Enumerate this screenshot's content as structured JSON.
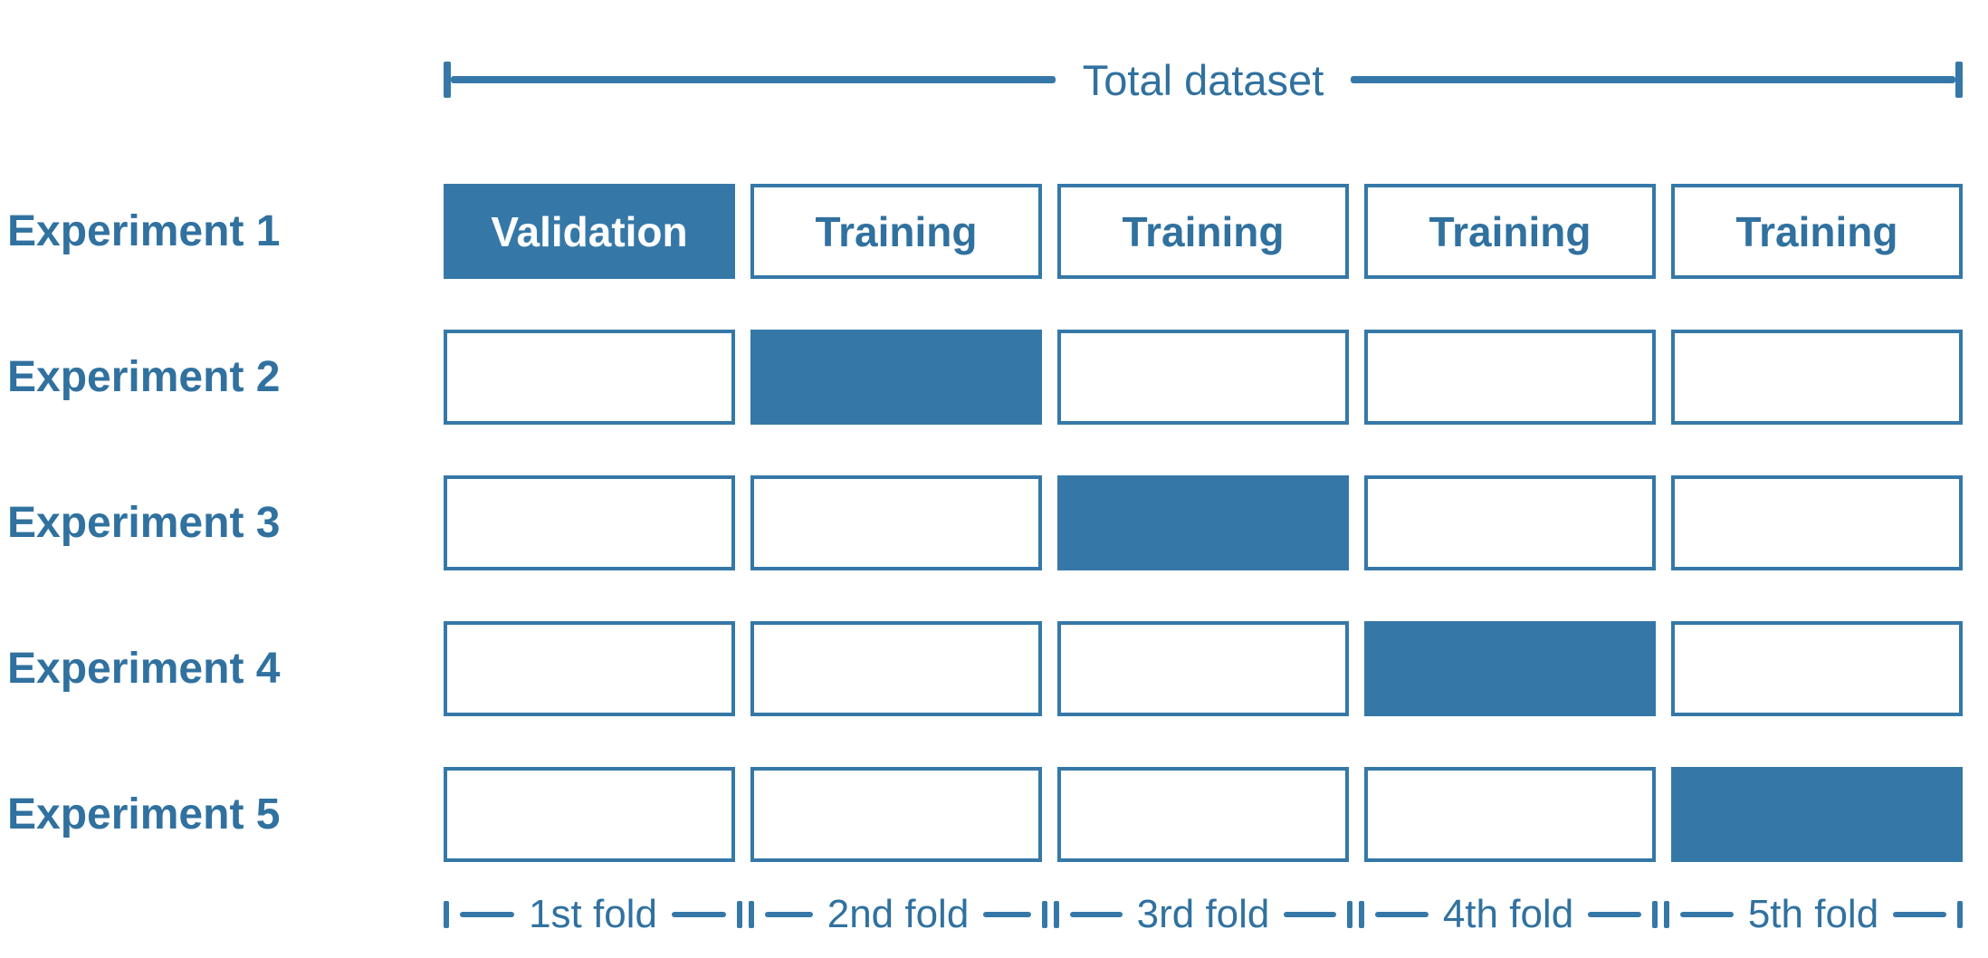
{
  "title": "Total dataset",
  "colors": {
    "blue": "#3578a8",
    "text_blue": "#30719f",
    "background": "#ffffff"
  },
  "experiments": [
    {
      "label": "Experiment 1",
      "cells": [
        {
          "text": "Validation",
          "state": "filled"
        },
        {
          "text": "Training",
          "state": "outlined"
        },
        {
          "text": "Training",
          "state": "outlined"
        },
        {
          "text": "Training",
          "state": "outlined"
        },
        {
          "text": "Training",
          "state": "outlined"
        }
      ]
    },
    {
      "label": "Experiment 2",
      "cells": [
        {
          "text": "",
          "state": "outlined"
        },
        {
          "text": "",
          "state": "filled"
        },
        {
          "text": "",
          "state": "outlined"
        },
        {
          "text": "",
          "state": "outlined"
        },
        {
          "text": "",
          "state": "outlined"
        }
      ]
    },
    {
      "label": "Experiment 3",
      "cells": [
        {
          "text": "",
          "state": "outlined"
        },
        {
          "text": "",
          "state": "outlined"
        },
        {
          "text": "",
          "state": "filled"
        },
        {
          "text": "",
          "state": "outlined"
        },
        {
          "text": "",
          "state": "outlined"
        }
      ]
    },
    {
      "label": "Experiment 4",
      "cells": [
        {
          "text": "",
          "state": "outlined"
        },
        {
          "text": "",
          "state": "outlined"
        },
        {
          "text": "",
          "state": "outlined"
        },
        {
          "text": "",
          "state": "filled"
        },
        {
          "text": "",
          "state": "outlined"
        }
      ]
    },
    {
      "label": "Experiment 5",
      "cells": [
        {
          "text": "",
          "state": "outlined"
        },
        {
          "text": "",
          "state": "outlined"
        },
        {
          "text": "",
          "state": "outlined"
        },
        {
          "text": "",
          "state": "outlined"
        },
        {
          "text": "",
          "state": "filled"
        }
      ]
    }
  ],
  "folds": [
    {
      "label": "1st fold"
    },
    {
      "label": "2nd fold"
    },
    {
      "label": "3rd fold"
    },
    {
      "label": "4th fold"
    },
    {
      "label": "5th fold"
    }
  ]
}
